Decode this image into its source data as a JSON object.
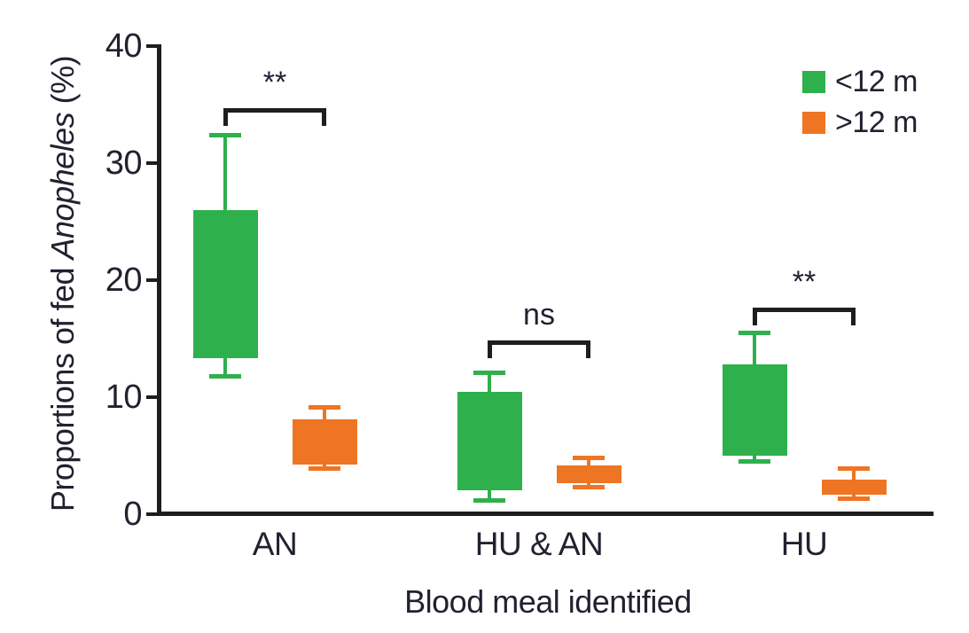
{
  "colors": {
    "ink": "#232030",
    "axis": "#1f1d1d"
  },
  "chart_data": {
    "type": "boxplot",
    "title": "",
    "xlabel": "Blood meal identified",
    "ylabel": "Proportions of fed Anopheles (%)",
    "ylabel_prefix": "Proportions of fed ",
    "ylabel_italic": "Anopheles",
    "ylabel_suffix": " (%)",
    "ylim": [
      0,
      40
    ],
    "yticks": [
      0,
      10,
      20,
      30,
      40
    ],
    "categories": [
      "AN",
      "HU & AN",
      "HU"
    ],
    "grid": false,
    "legend_position": "top-right",
    "legend": [
      {
        "label": "<12 m",
        "color": "#2eb04d"
      },
      {
        "label": ">12 m",
        "color": "#ee7523"
      }
    ],
    "series": [
      {
        "name": "<12 m",
        "color": "#2eb04d",
        "boxes": [
          {
            "category": "AN",
            "whisker_low": 11.8,
            "q1": 13.3,
            "q3": 26.0,
            "whisker_high": 32.4
          },
          {
            "category": "HU & AN",
            "whisker_low": 1.2,
            "q1": 2.0,
            "q3": 10.4,
            "whisker_high": 12.1
          },
          {
            "category": "HU",
            "whisker_low": 4.5,
            "q1": 5.0,
            "q3": 12.8,
            "whisker_high": 15.5
          }
        ]
      },
      {
        "name": ">12 m",
        "color": "#ee7523",
        "boxes": [
          {
            "category": "AN",
            "whisker_low": 3.9,
            "q1": 4.2,
            "q3": 8.1,
            "whisker_high": 9.1
          },
          {
            "category": "HU & AN",
            "whisker_low": 2.3,
            "q1": 2.6,
            "q3": 4.1,
            "whisker_high": 4.8
          },
          {
            "category": "HU",
            "whisker_low": 1.3,
            "q1": 1.6,
            "q3": 2.9,
            "whisker_high": 3.9
          }
        ]
      }
    ],
    "annotations": [
      {
        "category": "AN",
        "label": "**",
        "bracket_y": 34.7
      },
      {
        "category": "HU & AN",
        "label": "ns",
        "bracket_y": 14.8
      },
      {
        "category": "HU",
        "label": "**",
        "bracket_y": 17.6
      }
    ]
  }
}
